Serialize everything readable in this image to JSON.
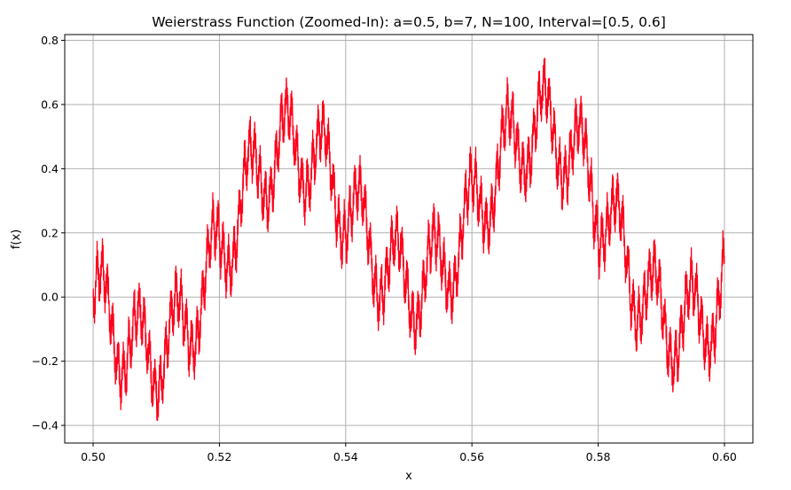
{
  "chart_data": {
    "type": "line",
    "title": "Weierstrass Function (Zoomed-In): a=0.5, b=7, N=100, Interval=[0.5, 0.6]",
    "xlabel": "x",
    "ylabel": "f(x)",
    "xlim": [
      0.4955,
      0.6045
    ],
    "ylim": [
      -0.455,
      0.818
    ],
    "grid": true,
    "line_color": "#ff0019",
    "grid_color": "#b0b0b0",
    "x_ticks": [
      0.5,
      0.52,
      0.54,
      0.56,
      0.58,
      0.6
    ],
    "x_tick_labels": [
      "0.50",
      "0.52",
      "0.54",
      "0.56",
      "0.58",
      "0.60"
    ],
    "y_ticks": [
      -0.4,
      -0.2,
      0.0,
      0.2,
      0.4,
      0.6,
      0.8
    ],
    "y_tick_labels": [
      "−0.4",
      "−0.2",
      "0.0",
      "0.2",
      "0.4",
      "0.6",
      "0.8"
    ],
    "function": {
      "a": 0.5,
      "b": 7,
      "N": 100,
      "x_range": [
        0.5,
        0.6
      ]
    }
  }
}
